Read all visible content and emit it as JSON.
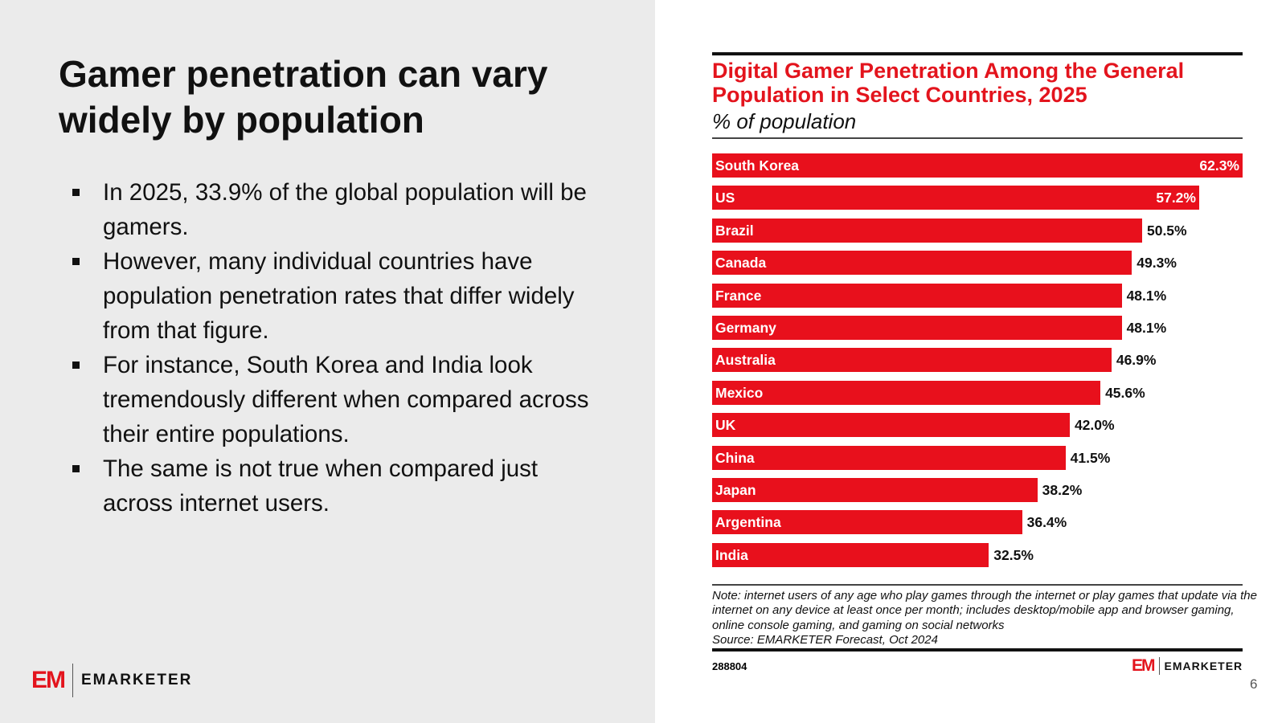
{
  "slide": {
    "title": "Gamer penetration can vary widely by population",
    "bullets": [
      "In 2025, 33.9% of the global population will be gamers.",
      "However, many individual countries have population penetration rates that differ widely from that figure.",
      "For instance, South Korea and India look tremendously different when compared across their entire populations.",
      "The same is not true when compared just across internet users."
    ],
    "logo_mark": "EM",
    "logo_text": "EMARKETER",
    "page_number": "6"
  },
  "chart_data": {
    "type": "bar",
    "orientation": "horizontal",
    "title": "Digital Gamer Penetration Among the General Population in Select Countries, 2025",
    "subtitle": "% of population",
    "categories": [
      "South Korea",
      "US",
      "Brazil",
      "Canada",
      "France",
      "Germany",
      "Australia",
      "Mexico",
      "UK",
      "China",
      "Japan",
      "Argentina",
      "India"
    ],
    "values": [
      62.3,
      57.2,
      50.5,
      49.3,
      48.1,
      48.1,
      46.9,
      45.6,
      42.0,
      41.5,
      38.2,
      36.4,
      32.5
    ],
    "labels": [
      "62.3%",
      "57.2%",
      "50.5%",
      "49.3%",
      "48.1%",
      "48.1%",
      "46.9%",
      "45.6%",
      "42.0%",
      "41.5%",
      "38.2%",
      "36.4%",
      "32.5%"
    ],
    "xlim": [
      0,
      62.3
    ],
    "bar_color": "#e8101c",
    "note": "Note: internet users of any age who play games through the internet or play games that update via the internet on any device at least once per month; includes desktop/mobile app and browser gaming, online console gaming, and gaming on social networks",
    "source": "Source: EMARKETER Forecast, Oct 2024",
    "chart_id": "288804"
  }
}
